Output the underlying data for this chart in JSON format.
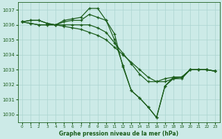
{
  "title": "Graphe pression niveau de la mer (hPa)",
  "ylim": [
    1029.5,
    1037.5
  ],
  "xlim": [
    -0.5,
    23.5
  ],
  "yticks": [
    1030,
    1031,
    1032,
    1033,
    1034,
    1035,
    1036,
    1037
  ],
  "xticks": [
    0,
    1,
    2,
    3,
    4,
    5,
    6,
    7,
    8,
    9,
    10,
    11,
    12,
    13,
    14,
    15,
    16,
    17,
    18,
    19,
    20,
    21,
    22,
    23
  ],
  "bg_color": "#cceae7",
  "grid_color": "#aad4d0",
  "line_color": "#1a5c1a",
  "lines": [
    [
      1036.2,
      1036.3,
      1036.3,
      1036.1,
      1036.0,
      1036.3,
      1036.4,
      1036.5,
      1037.1,
      1037.1,
      1036.3,
      1035.4,
      1033.2,
      1031.6,
      1031.1,
      1030.5,
      1029.8,
      1031.9,
      1032.5,
      1032.5,
      1033.0,
      1033.0,
      1033.0,
      1032.9
    ],
    [
      1036.2,
      1036.3,
      1036.3,
      1036.1,
      1036.0,
      1036.2,
      1036.3,
      1036.3,
      1036.7,
      1036.5,
      1036.3,
      1035.0,
      1033.3,
      1031.6,
      1031.1,
      1030.5,
      1029.8,
      1031.9,
      1032.4,
      1032.5,
      1033.0,
      1033.0,
      1033.0,
      1032.9
    ],
    [
      1036.2,
      1036.1,
      1036.0,
      1036.0,
      1036.0,
      1036.0,
      1036.0,
      1036.0,
      1036.0,
      1035.8,
      1035.5,
      1034.8,
      1034.1,
      1033.4,
      1032.7,
      1032.2,
      1032.2,
      1032.4,
      1032.5,
      1032.5,
      1033.0,
      1033.0,
      1033.0,
      1032.9
    ],
    [
      1036.2,
      1036.1,
      1036.0,
      1036.0,
      1036.0,
      1035.9,
      1035.8,
      1035.7,
      1035.5,
      1035.3,
      1035.0,
      1034.5,
      1034.0,
      1033.5,
      1033.0,
      1032.5,
      1032.2,
      1032.2,
      1032.4,
      1032.4,
      1033.0,
      1033.0,
      1033.0,
      1032.9
    ]
  ]
}
